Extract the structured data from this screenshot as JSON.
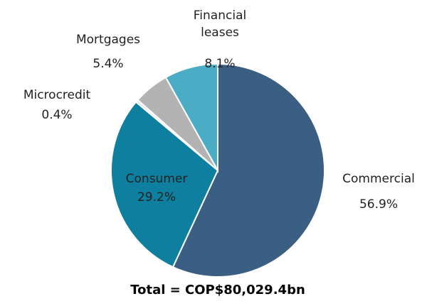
{
  "chart_data": {
    "type": "pie",
    "title": "Total = COP$80,029.4bn",
    "categories": [
      "Commercial",
      "Consumer",
      "Microcredit",
      "Mortgages",
      "Financial leases"
    ],
    "values": [
      56.9,
      29.2,
      0.4,
      5.4,
      8.1
    ],
    "value_labels": [
      "56.9%",
      "29.2%",
      "0.4%",
      "5.4%",
      "8.1%"
    ],
    "colors": [
      "#3a5f82",
      "#0e7f9e",
      "#e6e6e6",
      "#b3b3b3",
      "#4bacc6"
    ]
  }
}
